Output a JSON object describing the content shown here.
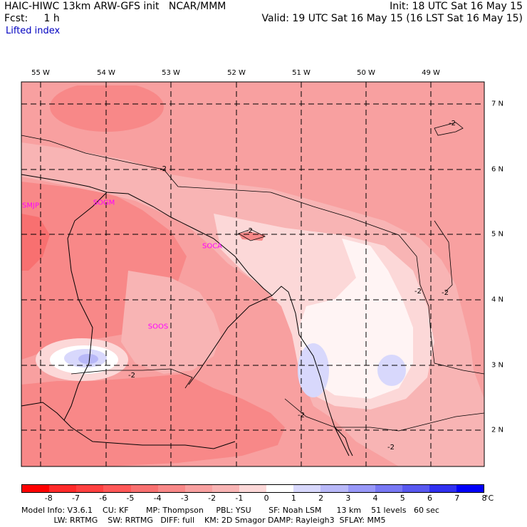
{
  "header": {
    "title": "HAIC-HIWC 13km ARW-GFS init   NCAR/MMM",
    "fcst": "Fcst:     1 h",
    "init": "Init: 18 UTC Sat 16 May 15",
    "valid": "Valid: 19 UTC Sat 16 May 15 (16 LST Sat 16 May 15)",
    "field": "Lifted index"
  },
  "map": {
    "lon_labels": [
      "55 W",
      "54 W",
      "53 W",
      "52 W",
      "51 W",
      "50 W",
      "49 W"
    ],
    "lat_labels": [
      "7 N",
      "6 N",
      "5 N",
      "4 N",
      "3 N",
      "2 N"
    ],
    "stations": [
      "SMJP",
      "SOGM",
      "SOCA",
      "SOOS"
    ],
    "contour_label": "-2"
  },
  "colorbar": {
    "labels": [
      "-8",
      "-7",
      "-6",
      "-5",
      "-4",
      "-3",
      "-2",
      "-1",
      "0",
      "1",
      "2",
      "3",
      "4",
      "5",
      "6",
      "7",
      "8"
    ],
    "unit": "°C",
    "colors": [
      "#ff0000",
      "#ff2a2a",
      "#ff4040",
      "#ff5858",
      "#f87070",
      "#f88888",
      "#f8a0a0",
      "#f8b4b4",
      "#fcd8d8",
      "#ffffff",
      "#d8d8fc",
      "#b8b8f8",
      "#9898f8",
      "#7878f4",
      "#5858f0",
      "#3030f0",
      "#0000f8"
    ]
  },
  "model_info": {
    "line1": "Model Info: V3.6.1    CU: KF       MP: Thompson     PBL: YSU       SF: Noah LSM      13 km    51 levels   60 sec",
    "line2": "             LW: RRTMG    SW: RRTMG   DIFF: full    KM: 2D Smagor DAMP: Rayleigh3  SFLAY: MM5"
  }
}
